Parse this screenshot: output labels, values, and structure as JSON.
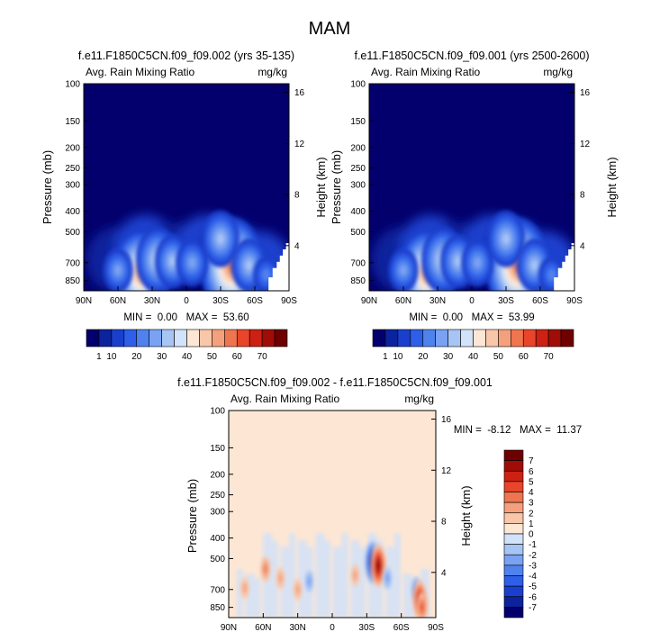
{
  "figure_title": "MAM",
  "chart_data": [
    {
      "type": "heatmap",
      "title": "f.e11.F1850C5CN.f09_f09.002 (yrs 35-135)",
      "left_label": "Avg. Rain Mixing Ratio",
      "right_label": "mg/kg",
      "ylabel": "Pressure (mb)",
      "ylabel_right": "Height (km)",
      "x_ticks": [
        "90N",
        "60N",
        "30N",
        "0",
        "30S",
        "60S",
        "90S"
      ],
      "y_ticks": [
        "100",
        "150",
        "200",
        "250",
        "300",
        "400",
        "500",
        "700",
        "850"
      ],
      "y_ticks_right": [
        "16",
        "12",
        "8",
        "4"
      ],
      "stats": "MIN =  0.00   MAX =  53.60",
      "min": 0.0,
      "max": 53.6,
      "blobs": [
        {
          "lat": -40,
          "p": 730,
          "value": 50
        },
        {
          "lat": 40,
          "p": 790,
          "value": 44
        },
        {
          "lat": 25,
          "p": 680,
          "value": 30
        },
        {
          "lat": 12,
          "p": 690,
          "value": 22
        },
        {
          "lat": -5,
          "p": 700,
          "value": 18
        },
        {
          "lat": -30,
          "p": 540,
          "value": 24
        },
        {
          "lat": -55,
          "p": 720,
          "value": 22
        },
        {
          "lat": 60,
          "p": 760,
          "value": 16
        },
        {
          "lat": -70,
          "p": 800,
          "value": 12
        }
      ]
    },
    {
      "type": "heatmap",
      "title": "f.e11.F1850C5CN.f09_f09.001 (yrs 2500-2600)",
      "left_label": "Avg. Rain Mixing Ratio",
      "right_label": "mg/kg",
      "ylabel": "Pressure (mb)",
      "ylabel_right": "Height (km)",
      "x_ticks": [
        "90N",
        "60N",
        "30N",
        "0",
        "30S",
        "60S",
        "90S"
      ],
      "y_ticks": [
        "100",
        "150",
        "200",
        "250",
        "300",
        "400",
        "500",
        "700",
        "850"
      ],
      "y_ticks_right": [
        "16",
        "12",
        "8",
        "4"
      ],
      "stats": "MIN =  0.00   MAX =  53.99",
      "min": 0.0,
      "max": 53.99,
      "blobs": [
        {
          "lat": -40,
          "p": 730,
          "value": 50
        },
        {
          "lat": 40,
          "p": 790,
          "value": 44
        },
        {
          "lat": 25,
          "p": 680,
          "value": 30
        },
        {
          "lat": 12,
          "p": 690,
          "value": 22
        },
        {
          "lat": -5,
          "p": 700,
          "value": 18
        },
        {
          "lat": -30,
          "p": 540,
          "value": 24
        },
        {
          "lat": -55,
          "p": 720,
          "value": 22
        },
        {
          "lat": 60,
          "p": 760,
          "value": 16
        },
        {
          "lat": -70,
          "p": 800,
          "value": 12
        }
      ]
    },
    {
      "type": "heatmap",
      "title": "f.e11.F1850C5CN.f09_f09.002 - f.e11.F1850C5CN.f09_f09.001",
      "left_label": "Avg. Rain Mixing Ratio",
      "right_label": "mg/kg",
      "ylabel": "Pressure (mb)",
      "ylabel_right": "Height (km)",
      "x_ticks": [
        "90N",
        "60N",
        "30N",
        "0",
        "30S",
        "60S",
        "90S"
      ],
      "y_ticks": [
        "100",
        "150",
        "200",
        "250",
        "300",
        "400",
        "500",
        "700",
        "850"
      ],
      "y_ticks_right": [
        "16",
        "12",
        "8",
        "4"
      ],
      "stats": "MIN =  -8.12   MAX =  11.37",
      "min": -8.12,
      "max": 11.37,
      "anomalies": [
        {
          "lat": -35,
          "p": 520,
          "value": -7
        },
        {
          "lat": -40,
          "p": 540,
          "value": 7
        },
        {
          "lat": -73,
          "p": 700,
          "value": -3
        },
        {
          "lat": -76,
          "p": 780,
          "value": 6
        },
        {
          "lat": -78,
          "p": 850,
          "value": 4
        },
        {
          "lat": 58,
          "p": 560,
          "value": 3
        },
        {
          "lat": 76,
          "p": 690,
          "value": 2
        },
        {
          "lat": 45,
          "p": 620,
          "value": 2
        },
        {
          "lat": 20,
          "p": 640,
          "value": -2
        },
        {
          "lat": -20,
          "p": 600,
          "value": 2
        },
        {
          "lat": -48,
          "p": 620,
          "value": -2
        },
        {
          "lat": 30,
          "p": 700,
          "value": 2
        }
      ]
    }
  ],
  "colorbar_top": {
    "tick_labels": [
      "1",
      "10",
      "20",
      "30",
      "40",
      "50",
      "60",
      "70"
    ],
    "colors": [
      "#03006d",
      "#0b239c",
      "#1a3fcd",
      "#2d5fe8",
      "#5082ee",
      "#7aa2f2",
      "#a6c4f4",
      "#d2e2f8",
      "#fde6d4",
      "#f8c6a8",
      "#f4a07d",
      "#ef7550",
      "#e8452a",
      "#cc2113",
      "#a00d07",
      "#6e0000"
    ]
  },
  "colorbar_bottom": {
    "tick_labels": [
      "7",
      "6",
      "5",
      "4",
      "3",
      "2",
      "1",
      "0",
      "-1",
      "-2",
      "-3",
      "-4",
      "-5",
      "-6",
      "-7"
    ],
    "colors": [
      "#6e0000",
      "#a00d07",
      "#cc2113",
      "#e8452a",
      "#ef7550",
      "#f4a07d",
      "#f8c6a8",
      "#fde6d4",
      "#d2e2f8",
      "#a6c4f4",
      "#7aa2f2",
      "#5082ee",
      "#2d5fe8",
      "#1a3fcd",
      "#0b239c",
      "#03006d"
    ]
  }
}
